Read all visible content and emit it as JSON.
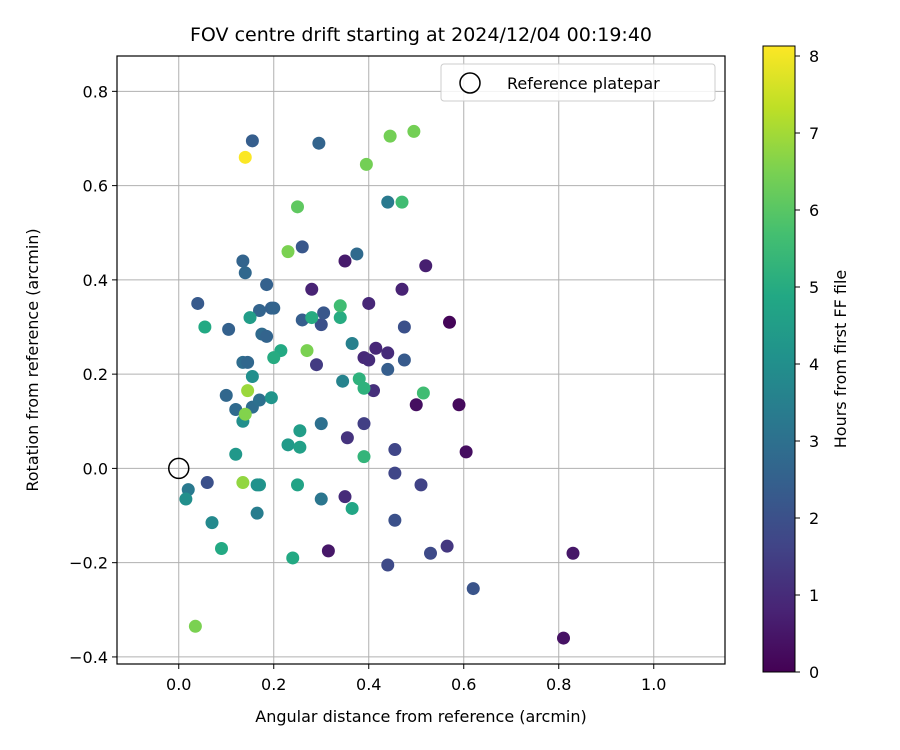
{
  "chart_data": {
    "type": "scatter",
    "title": "FOV centre drift starting at 2024/12/04 00:19:40",
    "xlabel": "Angular distance from reference (arcmin)",
    "ylabel": "Rotation from reference (arcmin)",
    "xlim": [
      -0.13,
      1.15
    ],
    "ylim": [
      -0.415,
      0.875
    ],
    "xticks": [
      0.0,
      0.2,
      0.4,
      0.6,
      0.8,
      1.0
    ],
    "xtick_labels": [
      "0.0",
      "0.2",
      "0.4",
      "0.6",
      "0.8",
      "1.0"
    ],
    "yticks": [
      -0.4,
      -0.2,
      0.0,
      0.2,
      0.4,
      0.6,
      0.8
    ],
    "ytick_labels": [
      "−0.4",
      "−0.2",
      "0.0",
      "0.2",
      "0.4",
      "0.6",
      "0.8"
    ],
    "grid": true,
    "legend": {
      "placement": "top-right",
      "entries": [
        "Reference platepar"
      ]
    },
    "reference_point": {
      "x": 0.0,
      "y": 0.0
    },
    "colorbar": {
      "label": "Hours from first FF file",
      "colormap": "viridis",
      "range": [
        0,
        8.13
      ],
      "ticks": [
        0,
        1,
        2,
        3,
        4,
        5,
        6,
        7,
        8
      ],
      "tick_labels": [
        "0",
        "1",
        "2",
        "3",
        "4",
        "5",
        "6",
        "7",
        "8"
      ]
    },
    "points": [
      {
        "x": 0.5,
        "y": 0.135,
        "c": 0.3
      },
      {
        "x": 0.57,
        "y": 0.31,
        "c": 0.1
      },
      {
        "x": 0.59,
        "y": 0.135,
        "c": 0.2
      },
      {
        "x": 0.605,
        "y": 0.035,
        "c": 0.3
      },
      {
        "x": 0.81,
        "y": -0.36,
        "c": 0.4
      },
      {
        "x": 0.83,
        "y": -0.18,
        "c": 0.5
      },
      {
        "x": 0.315,
        "y": -0.175,
        "c": 0.5
      },
      {
        "x": 0.35,
        "y": 0.44,
        "c": 0.6
      },
      {
        "x": 0.52,
        "y": 0.43,
        "c": 0.7
      },
      {
        "x": 0.47,
        "y": 0.38,
        "c": 0.8
      },
      {
        "x": 0.28,
        "y": 0.38,
        "c": 0.8
      },
      {
        "x": 0.4,
        "y": 0.35,
        "c": 0.9
      },
      {
        "x": 0.415,
        "y": 0.255,
        "c": 0.9
      },
      {
        "x": 0.44,
        "y": 0.245,
        "c": 1.0
      },
      {
        "x": 0.39,
        "y": 0.235,
        "c": 0.95
      },
      {
        "x": 0.4,
        "y": 0.23,
        "c": 1.0
      },
      {
        "x": 0.41,
        "y": 0.165,
        "c": 1.1
      },
      {
        "x": 0.355,
        "y": 0.065,
        "c": 1.2
      },
      {
        "x": 0.35,
        "y": -0.06,
        "c": 1.0
      },
      {
        "x": 0.565,
        "y": -0.165,
        "c": 1.3
      },
      {
        "x": 0.29,
        "y": 0.22,
        "c": 1.4
      },
      {
        "x": 0.39,
        "y": 0.095,
        "c": 1.5
      },
      {
        "x": 0.455,
        "y": 0.04,
        "c": 1.7
      },
      {
        "x": 0.455,
        "y": -0.01,
        "c": 1.7
      },
      {
        "x": 0.51,
        "y": -0.035,
        "c": 1.6
      },
      {
        "x": 0.53,
        "y": -0.18,
        "c": 1.8
      },
      {
        "x": 0.44,
        "y": -0.205,
        "c": 1.8
      },
      {
        "x": 0.455,
        "y": -0.11,
        "c": 2.0
      },
      {
        "x": 0.62,
        "y": -0.255,
        "c": 2.1
      },
      {
        "x": 0.06,
        "y": -0.03,
        "c": 2.0
      },
      {
        "x": 0.475,
        "y": 0.3,
        "c": 2.0
      },
      {
        "x": 0.3,
        "y": 0.305,
        "c": 2.0
      },
      {
        "x": 0.305,
        "y": 0.33,
        "c": 2.2
      },
      {
        "x": 0.475,
        "y": 0.23,
        "c": 2.3
      },
      {
        "x": 0.44,
        "y": 0.21,
        "c": 2.4
      },
      {
        "x": 0.26,
        "y": 0.47,
        "c": 2.2
      },
      {
        "x": 0.04,
        "y": 0.35,
        "c": 2.3
      },
      {
        "x": 0.155,
        "y": 0.695,
        "c": 2.4
      },
      {
        "x": 0.295,
        "y": 0.69,
        "c": 2.6
      },
      {
        "x": 0.375,
        "y": 0.455,
        "c": 2.8
      },
      {
        "x": 0.105,
        "y": 0.295,
        "c": 2.5
      },
      {
        "x": 0.26,
        "y": 0.315,
        "c": 2.4
      },
      {
        "x": 0.17,
        "y": 0.335,
        "c": 2.6
      },
      {
        "x": 0.185,
        "y": 0.39,
        "c": 2.5
      },
      {
        "x": 0.135,
        "y": 0.44,
        "c": 2.6
      },
      {
        "x": 0.14,
        "y": 0.415,
        "c": 2.7
      },
      {
        "x": 0.195,
        "y": 0.34,
        "c": 2.5
      },
      {
        "x": 0.2,
        "y": 0.34,
        "c": 2.6
      },
      {
        "x": 0.175,
        "y": 0.285,
        "c": 2.8
      },
      {
        "x": 0.185,
        "y": 0.28,
        "c": 2.6
      },
      {
        "x": 0.135,
        "y": 0.225,
        "c": 2.9
      },
      {
        "x": 0.145,
        "y": 0.225,
        "c": 2.7
      },
      {
        "x": 0.1,
        "y": 0.155,
        "c": 2.7
      },
      {
        "x": 0.12,
        "y": 0.125,
        "c": 2.8
      },
      {
        "x": 0.155,
        "y": 0.13,
        "c": 2.9
      },
      {
        "x": 0.17,
        "y": 0.145,
        "c": 3.0
      },
      {
        "x": 0.3,
        "y": 0.095,
        "c": 3.0
      },
      {
        "x": 0.3,
        "y": -0.065,
        "c": 3.2
      },
      {
        "x": 0.44,
        "y": 0.565,
        "c": 3.3
      },
      {
        "x": 0.365,
        "y": 0.265,
        "c": 3.5
      },
      {
        "x": 0.345,
        "y": 0.185,
        "c": 3.6
      },
      {
        "x": 0.02,
        "y": -0.045,
        "c": 3.3
      },
      {
        "x": 0.165,
        "y": -0.095,
        "c": 3.4
      },
      {
        "x": 0.07,
        "y": -0.115,
        "c": 3.8
      },
      {
        "x": 0.015,
        "y": -0.065,
        "c": 4.0
      },
      {
        "x": 0.135,
        "y": 0.1,
        "c": 4.0
      },
      {
        "x": 0.155,
        "y": 0.195,
        "c": 4.0
      },
      {
        "x": 0.17,
        "y": -0.035,
        "c": 4.2
      },
      {
        "x": 0.165,
        "y": -0.035,
        "c": 4.1
      },
      {
        "x": 0.12,
        "y": 0.03,
        "c": 4.3
      },
      {
        "x": 0.195,
        "y": 0.15,
        "c": 4.2
      },
      {
        "x": 0.23,
        "y": 0.05,
        "c": 4.4
      },
      {
        "x": 0.255,
        "y": 0.08,
        "c": 4.5
      },
      {
        "x": 0.255,
        "y": 0.045,
        "c": 4.6
      },
      {
        "x": 0.15,
        "y": 0.32,
        "c": 4.5
      },
      {
        "x": 0.365,
        "y": -0.085,
        "c": 4.8
      },
      {
        "x": 0.25,
        "y": -0.035,
        "c": 4.7
      },
      {
        "x": 0.24,
        "y": -0.19,
        "c": 4.9
      },
      {
        "x": 0.09,
        "y": -0.17,
        "c": 4.9
      },
      {
        "x": 0.055,
        "y": 0.3,
        "c": 4.9
      },
      {
        "x": 0.215,
        "y": 0.25,
        "c": 4.9
      },
      {
        "x": 0.2,
        "y": 0.235,
        "c": 5.0
      },
      {
        "x": 0.28,
        "y": 0.32,
        "c": 5.0
      },
      {
        "x": 0.34,
        "y": 0.32,
        "c": 5.0
      },
      {
        "x": 0.38,
        "y": 0.19,
        "c": 5.2
      },
      {
        "x": 0.39,
        "y": 0.17,
        "c": 5.2
      },
      {
        "x": 0.39,
        "y": 0.025,
        "c": 5.3
      },
      {
        "x": 0.34,
        "y": 0.345,
        "c": 5.6
      },
      {
        "x": 0.47,
        "y": 0.565,
        "c": 5.6
      },
      {
        "x": 0.515,
        "y": 0.16,
        "c": 5.6
      },
      {
        "x": 0.25,
        "y": 0.555,
        "c": 6.1
      },
      {
        "x": 0.395,
        "y": 0.645,
        "c": 6.4
      },
      {
        "x": 0.445,
        "y": 0.705,
        "c": 6.4
      },
      {
        "x": 0.495,
        "y": 0.715,
        "c": 6.4
      },
      {
        "x": 0.23,
        "y": 0.46,
        "c": 6.5
      },
      {
        "x": 0.27,
        "y": 0.25,
        "c": 6.5
      },
      {
        "x": 0.14,
        "y": 0.115,
        "c": 6.6
      },
      {
        "x": 0.135,
        "y": -0.03,
        "c": 6.8
      },
      {
        "x": 0.145,
        "y": 0.165,
        "c": 6.9
      },
      {
        "x": 0.035,
        "y": -0.335,
        "c": 6.5
      },
      {
        "x": 0.14,
        "y": 0.66,
        "c": 8.1
      }
    ]
  }
}
